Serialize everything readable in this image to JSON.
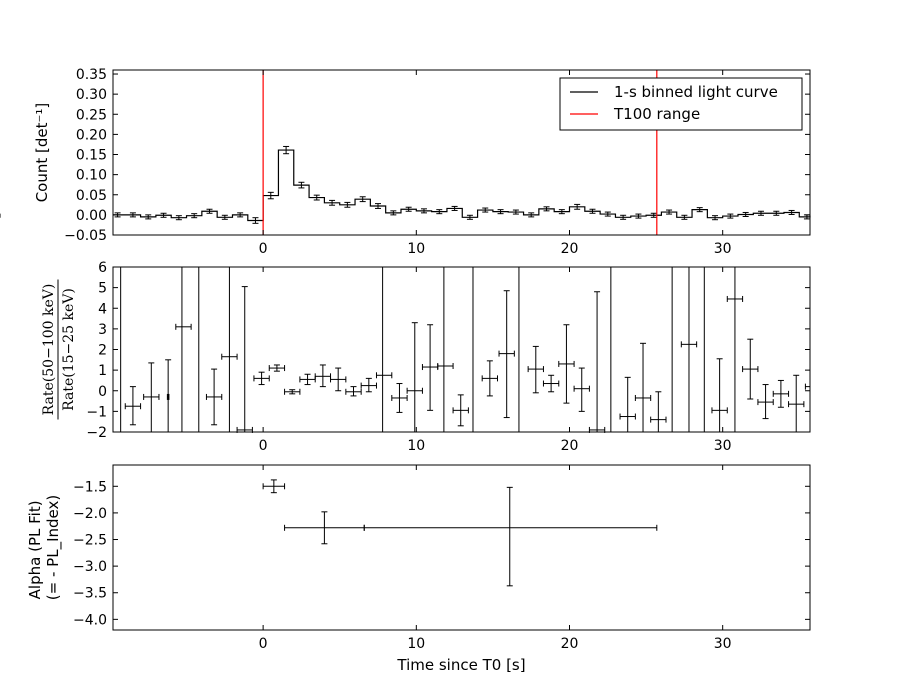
{
  "chart_data": [
    {
      "type": "line",
      "panel": "light-curve",
      "ylabel": "Count [det⁻¹]",
      "xlim": [
        -9.8,
        35.7
      ],
      "ylim": [
        -0.05,
        0.36
      ],
      "yticks": [
        -0.05,
        0.0,
        0.05,
        0.1,
        0.15,
        0.2,
        0.25,
        0.3,
        0.35
      ],
      "ytick_labels": [
        "−0.05",
        "0.00",
        "0.05",
        "0.10",
        "0.15",
        "0.20",
        "0.25",
        "0.30",
        "0.35"
      ],
      "xticks": [
        0,
        10,
        20,
        30
      ],
      "xtick_labels": [
        "0",
        "10",
        "20",
        "30"
      ],
      "legend": {
        "placement": "top-right",
        "entries": [
          {
            "label": "1-s binned light curve",
            "color": "#000000"
          },
          {
            "label": "T100 range",
            "color": "#ff0000"
          }
        ]
      },
      "vlines": [
        0.0,
        25.7
      ],
      "bin_edges": [
        -10,
        -9,
        -8,
        -7,
        -6,
        -5,
        -4,
        -3,
        -2,
        -1,
        0,
        1,
        2,
        3,
        4,
        5,
        6,
        7,
        8,
        9,
        10,
        11,
        12,
        13,
        14,
        15,
        16,
        17,
        18,
        19,
        20,
        21,
        22,
        23,
        24,
        25,
        26,
        27,
        28,
        29,
        30,
        31,
        32,
        33,
        34,
        35,
        36
      ],
      "series": [
        {
          "name": "1-s binned light curve",
          "values": [
            0.0,
            0.0,
            -0.005,
            -0.001,
            -0.007,
            -0.002,
            0.009,
            -0.006,
            0.0,
            -0.014,
            0.048,
            0.161,
            0.074,
            0.043,
            0.03,
            0.025,
            0.039,
            0.022,
            0.005,
            0.014,
            0.01,
            0.008,
            0.016,
            -0.006,
            0.012,
            0.008,
            0.007,
            0.0,
            0.015,
            0.008,
            0.02,
            0.009,
            0.002,
            -0.006,
            -0.003,
            -0.001,
            0.007,
            -0.006,
            0.013,
            -0.007,
            -0.003,
            0.001,
            0.004,
            0.004,
            0.006,
            -0.005,
            -0.002
          ],
          "errors": [
            0.005,
            0.005,
            0.005,
            0.005,
            0.005,
            0.005,
            0.005,
            0.005,
            0.005,
            0.007,
            0.008,
            0.009,
            0.007,
            0.006,
            0.006,
            0.006,
            0.006,
            0.006,
            0.005,
            0.005,
            0.005,
            0.005,
            0.005,
            0.005,
            0.005,
            0.005,
            0.005,
            0.005,
            0.005,
            0.005,
            0.006,
            0.005,
            0.005,
            0.005,
            0.005,
            0.005,
            0.005,
            0.005,
            0.005,
            0.005,
            0.005,
            0.005,
            0.005,
            0.005,
            0.005,
            0.005,
            0.005
          ]
        }
      ]
    },
    {
      "type": "scatter",
      "panel": "hardness-ratio",
      "ylabel_numerator": "Rate(50−100 keV)",
      "ylabel_denominator": "Rate(15−25 keV)",
      "xlim": [
        -9.8,
        35.7
      ],
      "ylim": [
        -2,
        6
      ],
      "yticks": [
        -2,
        -1,
        0,
        1,
        2,
        3,
        4,
        5,
        6
      ],
      "ytick_labels": [
        "−2",
        "−1",
        "0",
        "1",
        "2",
        "3",
        "4",
        "5",
        "6"
      ],
      "xticks": [
        0,
        10,
        20,
        30
      ],
      "xtick_labels": [
        "0",
        "10",
        "20",
        "30"
      ],
      "vlines_full_height": [
        -9.3,
        -5.3,
        -4.2,
        -2.2,
        7.8,
        11.8,
        13.7,
        16.7,
        22.7,
        26.7,
        27.8,
        28.8,
        30.8
      ],
      "points": [
        {
          "x": -8.5,
          "xerr": 0.5,
          "y": -0.75,
          "ylo": -1.65,
          "yhi": 0.2
        },
        {
          "x": -7.3,
          "xerr": 0.5,
          "y": -0.3,
          "ylo": -2.0,
          "yhi": 1.35
        },
        {
          "x": -6.2,
          "xerr": 0.05,
          "y": -0.3,
          "ylo": -2.0,
          "yhi": 1.5
        },
        {
          "x": -5.2,
          "xerr": 0.5,
          "y": 3.1,
          "ylo": 3.1,
          "yhi": 3.1
        },
        {
          "x": -3.2,
          "xerr": 0.5,
          "y": -0.3,
          "ylo": -1.65,
          "yhi": 1.05
        },
        {
          "x": -2.2,
          "xerr": 0.5,
          "y": 1.65,
          "ylo": 1.65,
          "yhi": 1.65
        },
        {
          "x": -1.2,
          "xerr": 0.5,
          "y": -1.9,
          "ylo": -2.0,
          "yhi": 5.05
        },
        {
          "x": -0.1,
          "xerr": 0.5,
          "y": 0.6,
          "ylo": 0.3,
          "yhi": 0.9
        },
        {
          "x": 0.9,
          "xerr": 0.5,
          "y": 1.1,
          "ylo": 0.95,
          "yhi": 1.25
        },
        {
          "x": 1.9,
          "xerr": 0.5,
          "y": -0.05,
          "ylo": -0.15,
          "yhi": 0.05
        },
        {
          "x": 2.9,
          "xerr": 0.5,
          "y": 0.55,
          "ylo": 0.3,
          "yhi": 0.8
        },
        {
          "x": 3.9,
          "xerr": 0.5,
          "y": 0.7,
          "ylo": 0.2,
          "yhi": 1.25
        },
        {
          "x": 4.9,
          "xerr": 0.5,
          "y": 0.55,
          "ylo": 0.0,
          "yhi": 1.1
        },
        {
          "x": 5.9,
          "xerr": 0.5,
          "y": -0.05,
          "ylo": -0.25,
          "yhi": 0.2
        },
        {
          "x": 6.9,
          "xerr": 0.5,
          "y": 0.25,
          "ylo": -0.05,
          "yhi": 0.6
        },
        {
          "x": 7.9,
          "xerr": 0.5,
          "y": 0.75,
          "ylo": 0.75,
          "yhi": 0.75
        },
        {
          "x": 8.9,
          "xerr": 0.5,
          "y": -0.35,
          "ylo": -1.05,
          "yhi": 0.35
        },
        {
          "x": 9.9,
          "xerr": 0.5,
          "y": 0.0,
          "ylo": -2.0,
          "yhi": 3.3
        },
        {
          "x": 10.9,
          "xerr": 0.5,
          "y": 1.15,
          "ylo": -0.95,
          "yhi": 3.2
        },
        {
          "x": 11.9,
          "xerr": 0.5,
          "y": 1.2,
          "ylo": 1.2,
          "yhi": 1.2
        },
        {
          "x": 12.9,
          "xerr": 0.5,
          "y": -0.95,
          "ylo": -1.7,
          "yhi": -0.2
        },
        {
          "x": 14.8,
          "xerr": 0.5,
          "y": 0.6,
          "ylo": -0.25,
          "yhi": 1.45
        },
        {
          "x": 15.9,
          "xerr": 0.5,
          "y": 1.8,
          "ylo": -1.3,
          "yhi": 4.85
        },
        {
          "x": 17.8,
          "xerr": 0.5,
          "y": 1.05,
          "ylo": -0.1,
          "yhi": 2.15
        },
        {
          "x": 18.8,
          "xerr": 0.5,
          "y": 0.35,
          "ylo": -0.05,
          "yhi": 0.75
        },
        {
          "x": 19.8,
          "xerr": 0.5,
          "y": 1.3,
          "ylo": -0.6,
          "yhi": 3.2
        },
        {
          "x": 20.8,
          "xerr": 0.5,
          "y": 0.1,
          "ylo": -1.0,
          "yhi": 1.1
        },
        {
          "x": 21.8,
          "xerr": 0.5,
          "y": -1.9,
          "ylo": -2.0,
          "yhi": 4.8
        },
        {
          "x": 23.8,
          "xerr": 0.5,
          "y": -1.25,
          "ylo": -2.0,
          "yhi": 0.65
        },
        {
          "x": 24.8,
          "xerr": 0.5,
          "y": -0.35,
          "ylo": -2.0,
          "yhi": 2.3
        },
        {
          "x": 25.8,
          "xerr": 0.5,
          "y": -1.4,
          "ylo": -2.0,
          "yhi": -0.05
        },
        {
          "x": 27.8,
          "xerr": 0.5,
          "y": 2.25,
          "ylo": 2.25,
          "yhi": 2.25
        },
        {
          "x": 29.8,
          "xerr": 0.5,
          "y": -0.95,
          "ylo": -2.0,
          "yhi": 1.55
        },
        {
          "x": 30.8,
          "xerr": 0.5,
          "y": 4.45,
          "ylo": 4.45,
          "yhi": 4.45
        },
        {
          "x": 31.8,
          "xerr": 0.5,
          "y": 1.05,
          "ylo": -0.4,
          "yhi": 2.5
        },
        {
          "x": 32.8,
          "xerr": 0.5,
          "y": -0.55,
          "ylo": -1.35,
          "yhi": 0.3
        },
        {
          "x": 33.8,
          "xerr": 0.5,
          "y": -0.15,
          "ylo": -0.8,
          "yhi": 0.5
        },
        {
          "x": 34.8,
          "xerr": 0.5,
          "y": -0.65,
          "ylo": -2.0,
          "yhi": 0.75
        },
        {
          "x": 35.7,
          "xerr": 0.3,
          "y": 0.2,
          "ylo": 0.2,
          "yhi": 0.2
        }
      ]
    },
    {
      "type": "scatter",
      "panel": "alpha",
      "ylabel": [
        "Alpha (PL Fit)",
        "(= - PL_Index)"
      ],
      "xlabel": "Time since T0 [s]",
      "xlim": [
        -9.8,
        35.7
      ],
      "ylim": [
        -4.2,
        -1.1
      ],
      "yticks": [
        -4.0,
        -3.5,
        -3.0,
        -2.5,
        -2.0,
        -1.5
      ],
      "ytick_labels": [
        "−4.0",
        "−3.5",
        "−3.0",
        "−2.5",
        "−2.0",
        "−1.5"
      ],
      "xticks": [
        0,
        10,
        20,
        30
      ],
      "xtick_labels": [
        "0",
        "10",
        "20",
        "30"
      ],
      "points": [
        {
          "xlo": 0.0,
          "xhi": 1.4,
          "x": 0.7,
          "y": -1.5,
          "ylo": -1.62,
          "yhi": -1.38
        },
        {
          "xlo": 1.4,
          "xhi": 6.6,
          "x": 4.0,
          "y": -2.28,
          "ylo": -2.58,
          "yhi": -1.98
        },
        {
          "xlo": 6.6,
          "xhi": 25.7,
          "x": 16.1,
          "y": -2.28,
          "ylo": -3.37,
          "yhi": -1.52
        }
      ]
    }
  ]
}
